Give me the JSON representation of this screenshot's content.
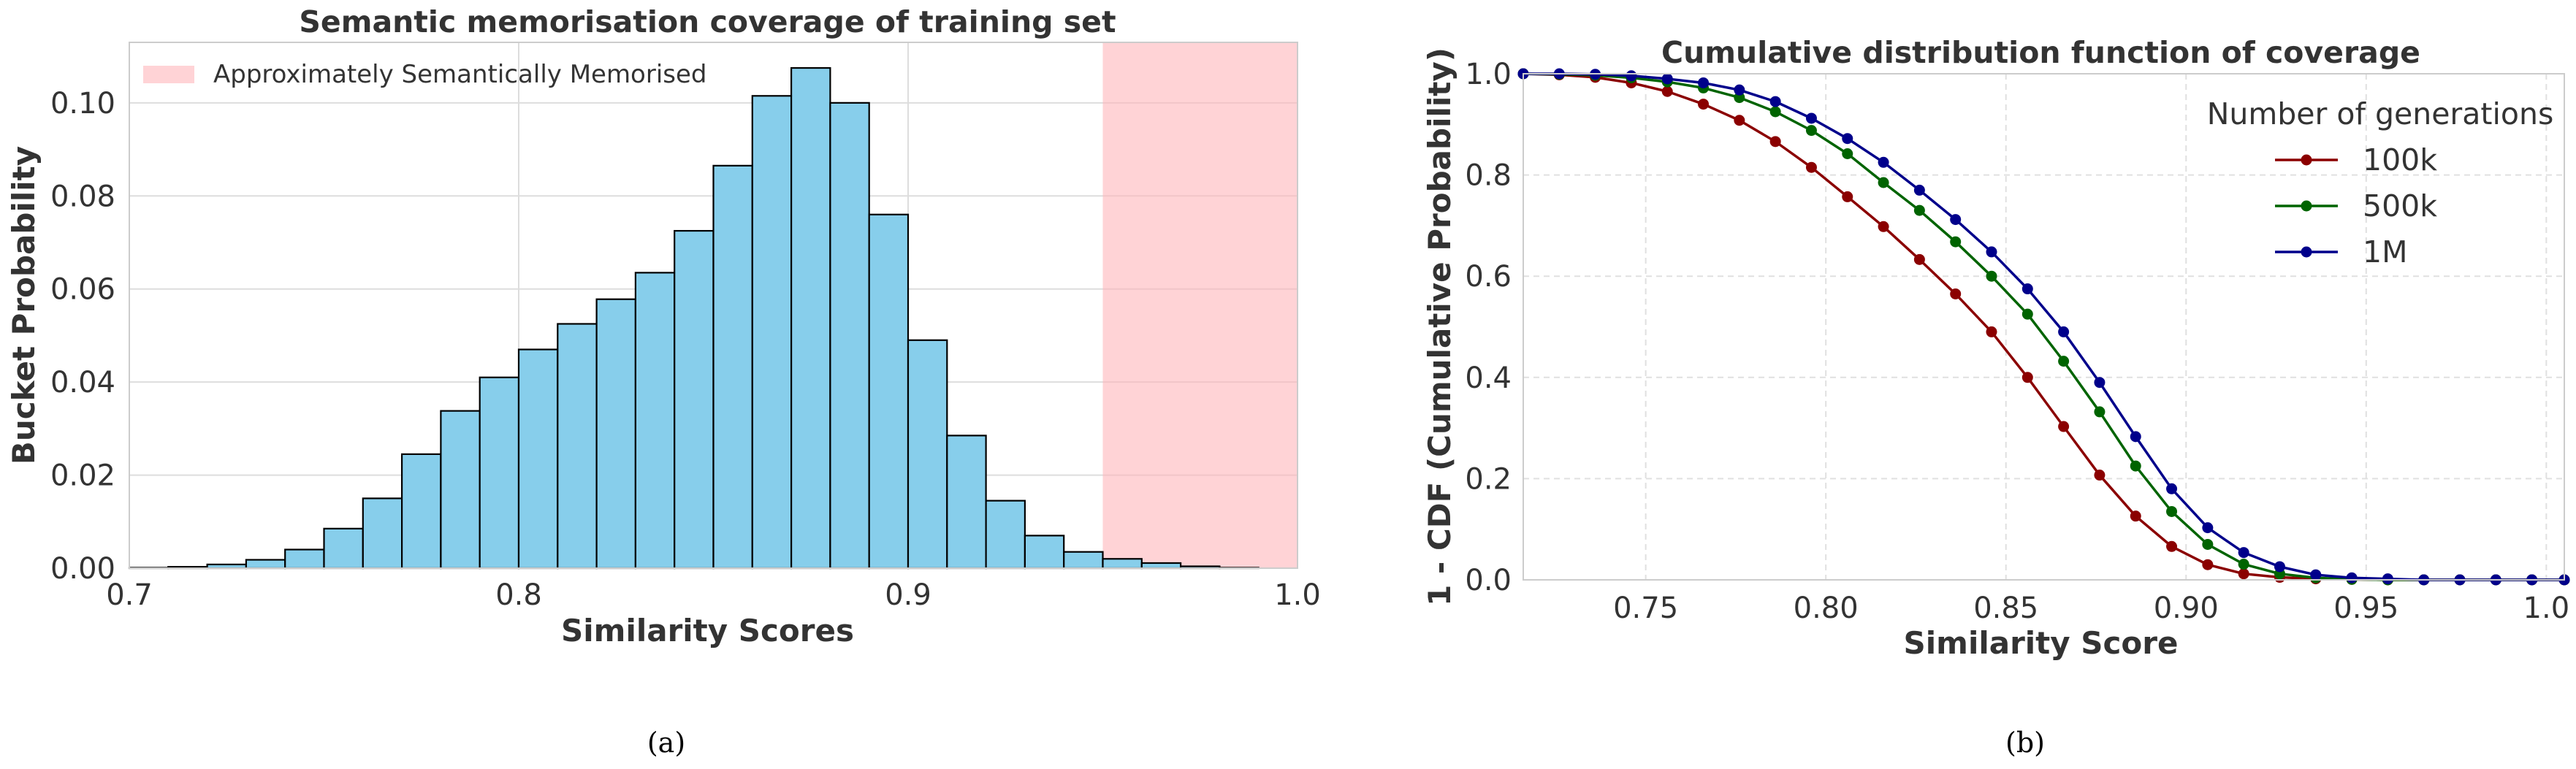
{
  "figure": {
    "caption_a": "(a)",
    "caption_b": "(b)"
  },
  "chart_data": [
    {
      "type": "bar",
      "title": "Semantic memorisation coverage of training set",
      "xlabel": "Similarity Scores",
      "ylabel": "Bucket Probability",
      "xlim": [
        0.7,
        1.0
      ],
      "ylim": [
        0,
        0.113
      ],
      "xticks": [
        "0.7",
        "0.8",
        "0.9",
        "1.0"
      ],
      "xtick_values": [
        0.7,
        0.8,
        0.9,
        1.0
      ],
      "yticks": [
        "0.00",
        "0.02",
        "0.04",
        "0.06",
        "0.08",
        "0.10"
      ],
      "ytick_values": [
        0.0,
        0.02,
        0.04,
        0.06,
        0.08,
        0.1
      ],
      "bin_edges": [
        0.7,
        0.71,
        0.72,
        0.73,
        0.74,
        0.75,
        0.76,
        0.77,
        0.78,
        0.79,
        0.8,
        0.81,
        0.82,
        0.83,
        0.84,
        0.85,
        0.86,
        0.87,
        0.88,
        0.89,
        0.9,
        0.91,
        0.92,
        0.93,
        0.94,
        0.95,
        0.96,
        0.97,
        0.98,
        0.99,
        1.0
      ],
      "values": [
        0.0001,
        0.0003,
        0.0008,
        0.0018,
        0.004,
        0.0085,
        0.015,
        0.0245,
        0.0338,
        0.041,
        0.047,
        0.0525,
        0.0578,
        0.0635,
        0.0725,
        0.0865,
        0.1015,
        0.1075,
        0.1,
        0.076,
        0.049,
        0.0285,
        0.0145,
        0.007,
        0.0035,
        0.002,
        0.0011,
        0.0004,
        0.0001,
        0.0
      ],
      "highlight": {
        "label": "Approximately Semantically Memorised",
        "x_range": [
          0.95,
          1.0
        ],
        "color": "#ffb6bb"
      },
      "colors": {
        "bar": "#87ceeb",
        "edge": "#000000"
      },
      "grid": true,
      "legend_position": "top-left"
    },
    {
      "type": "line",
      "title": "Cumulative distribution function of coverage",
      "xlabel": "Similarity Score",
      "ylabel": "1 - CDF (Cumulative Probability)",
      "xlim": [
        0.716,
        1.005
      ],
      "ylim": [
        0,
        1.0
      ],
      "xticks": [
        "0.75",
        "0.80",
        "0.85",
        "0.90",
        "0.95",
        "1.0"
      ],
      "xtick_values": [
        0.75,
        0.8,
        0.85,
        0.9,
        0.95,
        1.0
      ],
      "yticks": [
        "0.0",
        "0.2",
        "0.4",
        "0.6",
        "0.8",
        "1.0"
      ],
      "ytick_values": [
        0.0,
        0.2,
        0.4,
        0.6,
        0.8,
        1.0
      ],
      "x": [
        0.716,
        0.726,
        0.736,
        0.746,
        0.756,
        0.766,
        0.776,
        0.786,
        0.796,
        0.806,
        0.816,
        0.826,
        0.836,
        0.846,
        0.856,
        0.866,
        0.876,
        0.886,
        0.896,
        0.906,
        0.916,
        0.926,
        0.936,
        0.946,
        0.956,
        0.966,
        0.976,
        0.986,
        0.996,
        1.005
      ],
      "legend_title": "Number of generations",
      "legend_position": "top-right",
      "grid": true,
      "series": [
        {
          "name": "100k",
          "color": "#8b0000",
          "values": [
            1.0,
            0.998,
            0.993,
            0.982,
            0.965,
            0.94,
            0.908,
            0.866,
            0.815,
            0.757,
            0.698,
            0.633,
            0.565,
            0.49,
            0.4,
            0.303,
            0.207,
            0.126,
            0.066,
            0.03,
            0.012,
            0.005,
            0.002,
            0.001,
            0.0,
            0.0,
            0.0,
            0.0,
            0.0,
            0.0
          ]
        },
        {
          "name": "500k",
          "color": "#006400",
          "values": [
            1.0,
            0.999,
            0.997,
            0.992,
            0.984,
            0.972,
            0.953,
            0.925,
            0.888,
            0.842,
            0.785,
            0.73,
            0.668,
            0.6,
            0.525,
            0.432,
            0.332,
            0.225,
            0.135,
            0.07,
            0.031,
            0.012,
            0.004,
            0.001,
            0.0,
            0.0,
            0.0,
            0.0,
            0.0,
            0.0
          ]
        },
        {
          "name": "1M",
          "color": "#00008b",
          "values": [
            1.0,
            1.0,
            0.999,
            0.996,
            0.99,
            0.982,
            0.968,
            0.945,
            0.912,
            0.872,
            0.825,
            0.77,
            0.712,
            0.648,
            0.575,
            0.49,
            0.39,
            0.283,
            0.18,
            0.103,
            0.054,
            0.026,
            0.01,
            0.004,
            0.002,
            0.0,
            0.0,
            0.0,
            0.0,
            0.0
          ]
        }
      ]
    }
  ]
}
